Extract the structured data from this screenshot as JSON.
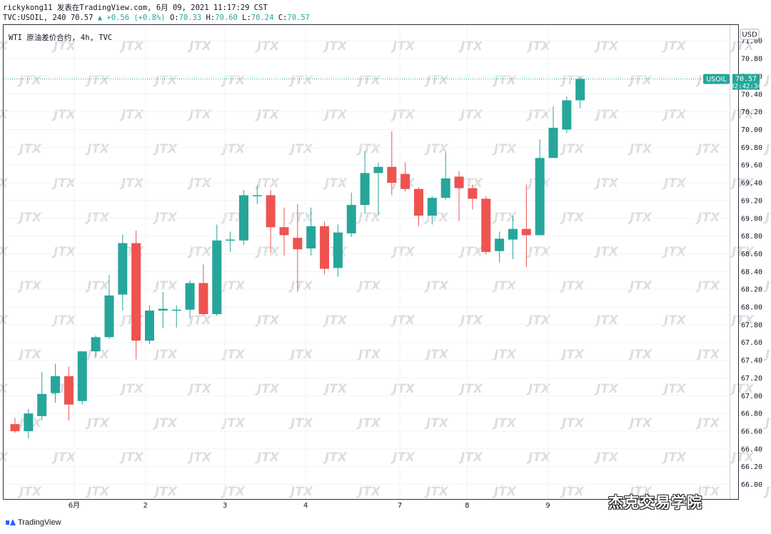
{
  "header": {
    "author_line": "rickykong11 发表在TradingView.com, 6月 09, 2021 11:17:29 CST",
    "symbol_line": "TVC:USOIL, 240 70.57",
    "change": "+0.56 (+0.8%)",
    "ohlc": [
      {
        "label": "O:",
        "value": "70.33"
      },
      {
        "label": "H:",
        "value": "70.60"
      },
      {
        "label": "L:",
        "value": "70.24"
      },
      {
        "label": "C:",
        "value": "70.57"
      }
    ]
  },
  "chart_legend": "WTI 原油差价合约, 4h, TVC",
  "currency_label": "USD",
  "price_tag": {
    "symbol": "USOIL",
    "price": "70.57",
    "countdown": "02:42:34"
  },
  "watermark_text": "JTX",
  "brand": "TradingView",
  "source_watermark": "杰克交易学院",
  "colors": {
    "up": "#26a69a",
    "down": "#ef5350",
    "last_line": "#26a69a",
    "grid": "#f0f3fa",
    "text": "#131722"
  },
  "chart_data": {
    "type": "candlestick",
    "ylim": [
      65.9,
      71.05
    ],
    "y_ticks": [
      "71.00",
      "70.80",
      "70.60",
      "70.40",
      "70.20",
      "70.00",
      "69.80",
      "69.60",
      "69.40",
      "69.20",
      "69.00",
      "68.80",
      "68.60",
      "68.40",
      "68.20",
      "68.00",
      "67.80",
      "67.60",
      "67.40",
      "67.20",
      "67.00",
      "66.80",
      "66.60",
      "66.40",
      "66.20",
      "66.00"
    ],
    "x_ticks": [
      {
        "label": "6月",
        "index": 4.4
      },
      {
        "label": "2",
        "index": 9.7
      },
      {
        "label": "3",
        "index": 15.6
      },
      {
        "label": "4",
        "index": 21.6
      },
      {
        "label": "7",
        "index": 28.6
      },
      {
        "label": "8",
        "index": 33.6
      },
      {
        "label": "9",
        "index": 39.6
      }
    ],
    "last_price": 70.57,
    "candles": [
      {
        "o": 66.68,
        "h": 66.75,
        "l": 66.58,
        "c": 66.6
      },
      {
        "o": 66.6,
        "h": 66.85,
        "l": 66.52,
        "c": 66.8
      },
      {
        "o": 66.77,
        "h": 67.27,
        "l": 66.72,
        "c": 67.02
      },
      {
        "o": 67.03,
        "h": 67.36,
        "l": 66.92,
        "c": 67.22
      },
      {
        "o": 67.22,
        "h": 67.33,
        "l": 66.72,
        "c": 66.9
      },
      {
        "o": 66.94,
        "h": 67.5,
        "l": 66.9,
        "c": 67.5
      },
      {
        "o": 67.5,
        "h": 67.68,
        "l": 67.44,
        "c": 67.66
      },
      {
        "o": 67.66,
        "h": 68.36,
        "l": 67.64,
        "c": 68.13
      },
      {
        "o": 68.14,
        "h": 68.82,
        "l": 67.96,
        "c": 68.72
      },
      {
        "o": 68.72,
        "h": 68.86,
        "l": 67.41,
        "c": 67.62
      },
      {
        "o": 67.62,
        "h": 68.02,
        "l": 67.58,
        "c": 67.96
      },
      {
        "o": 67.96,
        "h": 68.17,
        "l": 67.76,
        "c": 67.98
      },
      {
        "o": 67.97,
        "h": 68.02,
        "l": 67.77,
        "c": 67.97
      },
      {
        "o": 67.97,
        "h": 68.3,
        "l": 67.87,
        "c": 68.27
      },
      {
        "o": 68.27,
        "h": 68.48,
        "l": 67.9,
        "c": 67.92
      },
      {
        "o": 67.92,
        "h": 68.93,
        "l": 67.9,
        "c": 68.75
      },
      {
        "o": 68.75,
        "h": 68.85,
        "l": 68.62,
        "c": 68.76
      },
      {
        "o": 68.75,
        "h": 69.32,
        "l": 68.7,
        "c": 69.26
      },
      {
        "o": 69.26,
        "h": 69.37,
        "l": 69.16,
        "c": 69.26
      },
      {
        "o": 69.26,
        "h": 69.32,
        "l": 68.61,
        "c": 68.9
      },
      {
        "o": 68.9,
        "h": 69.12,
        "l": 68.58,
        "c": 68.81
      },
      {
        "o": 68.78,
        "h": 69.16,
        "l": 68.17,
        "c": 68.65
      },
      {
        "o": 68.66,
        "h": 69.12,
        "l": 68.58,
        "c": 68.91
      },
      {
        "o": 68.91,
        "h": 68.96,
        "l": 68.37,
        "c": 68.43
      },
      {
        "o": 68.44,
        "h": 68.93,
        "l": 68.34,
        "c": 68.84
      },
      {
        "o": 68.83,
        "h": 69.29,
        "l": 68.79,
        "c": 69.15
      },
      {
        "o": 69.15,
        "h": 69.76,
        "l": 69.06,
        "c": 69.51
      },
      {
        "o": 69.51,
        "h": 69.63,
        "l": 69.04,
        "c": 69.58
      },
      {
        "o": 69.58,
        "h": 69.98,
        "l": 69.26,
        "c": 69.4
      },
      {
        "o": 69.5,
        "h": 69.63,
        "l": 69.3,
        "c": 69.33
      },
      {
        "o": 69.33,
        "h": 69.35,
        "l": 68.91,
        "c": 69.03
      },
      {
        "o": 69.03,
        "h": 69.25,
        "l": 68.93,
        "c": 69.23
      },
      {
        "o": 69.23,
        "h": 69.74,
        "l": 69.21,
        "c": 69.45
      },
      {
        "o": 69.47,
        "h": 69.53,
        "l": 68.97,
        "c": 69.34
      },
      {
        "o": 69.34,
        "h": 69.38,
        "l": 69.1,
        "c": 69.22
      },
      {
        "o": 69.22,
        "h": 69.25,
        "l": 68.59,
        "c": 68.62
      },
      {
        "o": 68.63,
        "h": 68.85,
        "l": 68.5,
        "c": 68.77
      },
      {
        "o": 68.76,
        "h": 69.03,
        "l": 68.54,
        "c": 68.88
      },
      {
        "o": 68.88,
        "h": 69.38,
        "l": 68.45,
        "c": 68.81
      },
      {
        "o": 68.81,
        "h": 69.89,
        "l": 68.81,
        "c": 69.68
      },
      {
        "o": 69.68,
        "h": 70.26,
        "l": 69.68,
        "c": 70.02
      },
      {
        "o": 70.0,
        "h": 70.37,
        "l": 69.96,
        "c": 70.33
      },
      {
        "o": 70.33,
        "h": 70.6,
        "l": 70.24,
        "c": 70.57
      }
    ]
  }
}
